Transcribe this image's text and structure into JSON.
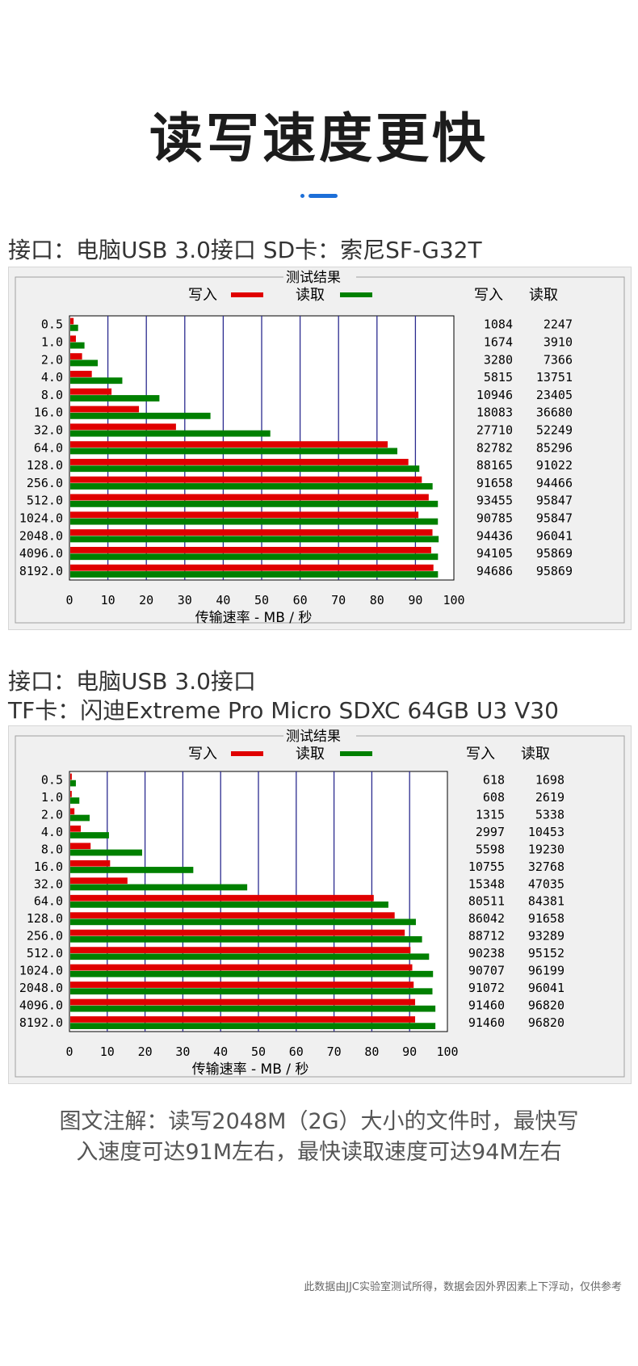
{
  "title": "读写速度更快",
  "section1": {
    "caption": "接口：电脑USB 3.0接口  SD卡：索尼SF-G32T"
  },
  "section2": {
    "caption_line1": "接口：电脑USB 3.0接口",
    "caption_line2": "TF卡：闪迪Extreme Pro Micro SDXC 64GB U3 V30"
  },
  "note": {
    "line1": "图文注解：读写2048M（2G）大小的文件时，最快写",
    "line2": "入速度可达91M左右，最快读取速度可达94M左右"
  },
  "footnote": "此数据由JJC实验室测试所得，数据会因外界因素上下浮动，仅供参考",
  "colors": {
    "write": "#e00000",
    "read": "#008000",
    "grid": "#2b2b8f",
    "accent": "#1d6fd8"
  },
  "chart_data": [
    {
      "type": "bar",
      "orientation": "horizontal",
      "title": "测试结果",
      "xlabel": "传输速率 - MB / 秒",
      "xlim": [
        0,
        100
      ],
      "xticks": [
        0,
        10,
        20,
        30,
        40,
        50,
        60,
        70,
        80,
        90,
        100
      ],
      "legend": [
        "写入",
        "读取"
      ],
      "column_headers": [
        "写入",
        "读取"
      ],
      "categories": [
        "0.5",
        "1.0",
        "2.0",
        "4.0",
        "8.0",
        "16.0",
        "32.0",
        "64.0",
        "128.0",
        "256.0",
        "512.0",
        "1024.0",
        "2048.0",
        "4096.0",
        "8192.0"
      ],
      "series": [
        {
          "name": "写入",
          "values": [
            1084,
            1674,
            3280,
            5815,
            10946,
            18083,
            27710,
            82782,
            88165,
            91658,
            93455,
            90785,
            94436,
            94105,
            94686
          ]
        },
        {
          "name": "读取",
          "values": [
            2247,
            3910,
            7366,
            13751,
            23405,
            36680,
            52249,
            85296,
            91022,
            94466,
            95847,
            95847,
            96041,
            95869,
            95869
          ]
        }
      ]
    },
    {
      "type": "bar",
      "orientation": "horizontal",
      "title": "测试结果",
      "xlabel": "传输速率 - MB / 秒",
      "xlim": [
        0,
        100
      ],
      "xticks": [
        0,
        10,
        20,
        30,
        40,
        50,
        60,
        70,
        80,
        90,
        100
      ],
      "legend": [
        "写入",
        "读取"
      ],
      "column_headers": [
        "写入",
        "读取"
      ],
      "categories": [
        "0.5",
        "1.0",
        "2.0",
        "4.0",
        "8.0",
        "16.0",
        "32.0",
        "64.0",
        "128.0",
        "256.0",
        "512.0",
        "1024.0",
        "2048.0",
        "4096.0",
        "8192.0"
      ],
      "series": [
        {
          "name": "写入",
          "values": [
            618,
            608,
            1315,
            2997,
            5598,
            10755,
            15348,
            80511,
            86042,
            88712,
            90238,
            90707,
            91072,
            91460,
            91460
          ]
        },
        {
          "name": "读取",
          "values": [
            1698,
            2619,
            5338,
            10453,
            19230,
            32768,
            47035,
            84381,
            91658,
            93289,
            95152,
            96199,
            96041,
            96820,
            96820
          ]
        }
      ]
    }
  ]
}
